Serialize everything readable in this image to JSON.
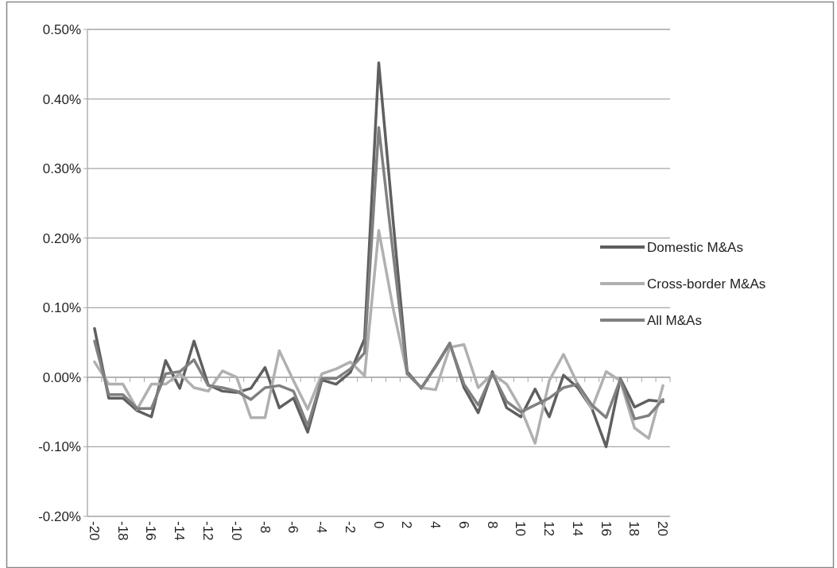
{
  "chart_data": {
    "type": "line",
    "categories": [
      "-20",
      null,
      "-18",
      null,
      "-16",
      null,
      "-14",
      null,
      "-12",
      null,
      "-10",
      null,
      "-8",
      null,
      "-6",
      null,
      "-4",
      null,
      "-2",
      null,
      "0",
      null,
      "2",
      null,
      "4",
      null,
      "6",
      null,
      "8",
      null,
      "10",
      null,
      "12",
      null,
      "14",
      null,
      "16",
      null,
      "18",
      null,
      "20"
    ],
    "series": [
      {
        "name": "Domestic M&As",
        "color": "#5f5f5f",
        "values": [
          0.07,
          -0.03,
          -0.03,
          -0.048,
          -0.057,
          0.024,
          -0.016,
          0.052,
          -0.011,
          -0.02,
          -0.022,
          -0.016,
          0.014,
          -0.044,
          -0.03,
          -0.079,
          -0.004,
          -0.01,
          0.007,
          0.055,
          0.452,
          0.227,
          0.008,
          -0.016,
          0.016,
          0.049,
          -0.015,
          -0.051,
          0.008,
          -0.044,
          -0.057,
          -0.017,
          -0.057,
          0.003,
          -0.015,
          -0.045,
          -0.1,
          -0.002,
          -0.043,
          -0.033,
          -0.035
        ]
      },
      {
        "name": "Cross-border M&As",
        "color": "#b0b0b0",
        "values": [
          0.022,
          -0.01,
          -0.01,
          -0.046,
          -0.01,
          -0.01,
          0.005,
          -0.015,
          -0.02,
          0.009,
          0,
          -0.058,
          -0.058,
          0.038,
          -0.005,
          -0.046,
          0.005,
          0.012,
          0.022,
          0.002,
          0.211,
          0.1,
          0.005,
          -0.015,
          -0.018,
          0.043,
          0.047,
          -0.015,
          0.005,
          -0.01,
          -0.045,
          -0.095,
          -0.005,
          0.033,
          -0.01,
          -0.045,
          0.008,
          -0.005,
          -0.073,
          -0.088,
          -0.012
        ]
      },
      {
        "name": "All M&As",
        "color": "#808080",
        "values": [
          0.052,
          -0.025,
          -0.025,
          -0.045,
          -0.045,
          0.005,
          0.008,
          0.025,
          -0.012,
          -0.015,
          -0.02,
          -0.032,
          -0.015,
          -0.012,
          -0.02,
          -0.07,
          -0.002,
          -0.002,
          0.012,
          0.035,
          0.359,
          0.18,
          0.005,
          -0.015,
          0.015,
          0.048,
          -0.01,
          -0.04,
          0.005,
          -0.035,
          -0.05,
          -0.04,
          -0.03,
          -0.015,
          -0.01,
          -0.04,
          -0.058,
          -0.003,
          -0.06,
          -0.055,
          -0.032
        ]
      }
    ],
    "ylim": [
      -0.2,
      0.5
    ],
    "yticks": [
      {
        "value": -0.2,
        "label": "-0.20%"
      },
      {
        "value": -0.1,
        "label": "-0.10%"
      },
      {
        "value": 0,
        "label": "0.00%"
      },
      {
        "value": 0.1,
        "label": "0.10%"
      },
      {
        "value": 0.2,
        "label": "0.20%"
      },
      {
        "value": 0.3,
        "label": "0.30%"
      },
      {
        "value": 0.4,
        "label": "0.40%"
      },
      {
        "value": 0.5,
        "label": "0.50%"
      }
    ],
    "grid": "y",
    "legend": "right",
    "marker": "none",
    "line_style": "solid"
  }
}
